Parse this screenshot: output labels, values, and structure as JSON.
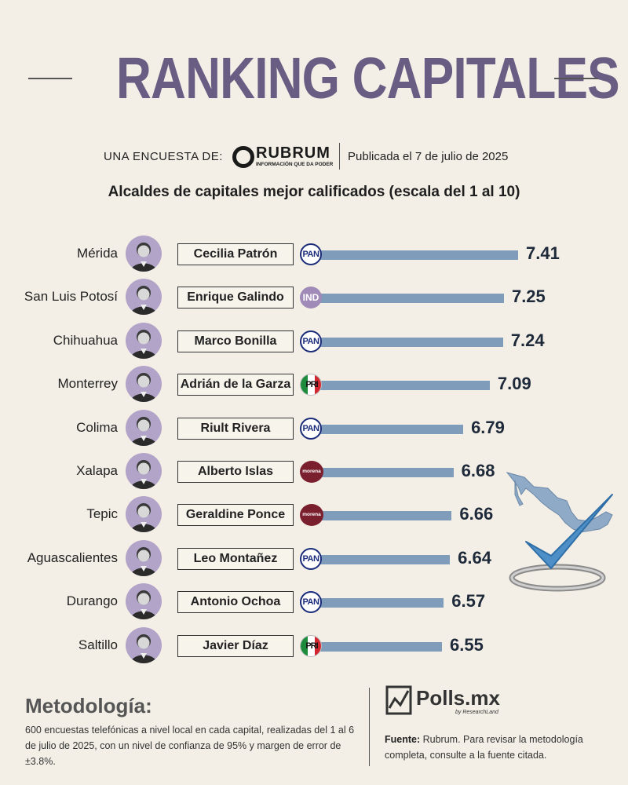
{
  "header": {
    "title": "RANKING CAPITALES",
    "survey_label": "UNA ENCUESTA DE:",
    "pollster_name": "RUBRUM",
    "pollster_tagline": "INFORMACIÓN QUE DA PODER",
    "published": "Publicada el 7 de julio de 2025"
  },
  "chart_data": {
    "type": "bar",
    "orientation": "horizontal",
    "title": "Alcaldes de capitales mejor calificados (escala del 1 al 10)",
    "bar_color": "#7f9cba",
    "rows": [
      {
        "city": "Mérida",
        "mayor": "Cecilia Patrón",
        "party": "PAN",
        "party_label": "PAN",
        "value": 7.41,
        "value_label": "7.41"
      },
      {
        "city": "San Luis Potosí",
        "mayor": "Enrique Galindo",
        "party": "IND",
        "party_label": "IND",
        "value": 7.25,
        "value_label": "7.25"
      },
      {
        "city": "Chihuahua",
        "mayor": "Marco Bonilla",
        "party": "PAN",
        "party_label": "PAN",
        "value": 7.24,
        "value_label": "7.24"
      },
      {
        "city": "Monterrey",
        "mayor": "Adrián de la Garza",
        "party": "PRI",
        "party_label": "PRI",
        "value": 7.09,
        "value_label": "7.09"
      },
      {
        "city": "Colima",
        "mayor": "Riult Rivera",
        "party": "PAN",
        "party_label": "PAN",
        "value": 6.79,
        "value_label": "6.79"
      },
      {
        "city": "Xalapa",
        "mayor": "Alberto Islas",
        "party": "MORENA",
        "party_label": "morena",
        "value": 6.68,
        "value_label": "6.68"
      },
      {
        "city": "Tepic",
        "mayor": "Geraldine Ponce",
        "party": "MORENA",
        "party_label": "morena",
        "value": 6.66,
        "value_label": "6.66"
      },
      {
        "city": "Aguascalientes",
        "mayor": "Leo Montañez",
        "party": "PAN",
        "party_label": "PAN",
        "value": 6.64,
        "value_label": "6.64"
      },
      {
        "city": "Durango",
        "mayor": "Antonio Ochoa",
        "party": "PAN",
        "party_label": "PAN",
        "value": 6.57,
        "value_label": "6.57"
      },
      {
        "city": "Saltillo",
        "mayor": "Javier Díaz",
        "party": "PRI",
        "party_label": "PRI",
        "value": 6.55,
        "value_label": "6.55"
      }
    ]
  },
  "footer": {
    "methodology_title": "Metodología:",
    "methodology_text": "600 encuestas telefónicas a nivel local en cada capital, realizadas del 1 al 6 de julio de 2025, con un nivel de confianza de 95% y margen de error de ±3.8%.",
    "brand_name": "Polls.mx",
    "brand_sub": "by ResearchLand",
    "source_label": "Fuente:",
    "source_text": "Rubrum. Para revisar la metodología completa, consulte a la fuente citada."
  }
}
